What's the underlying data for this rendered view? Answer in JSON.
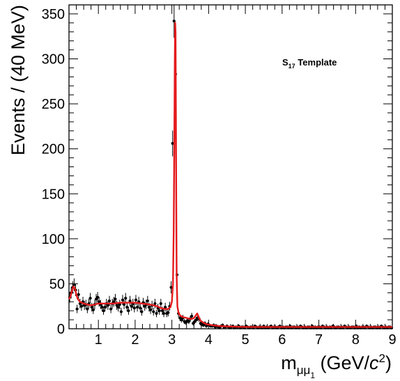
{
  "chart_data": {
    "type": "scatter",
    "annotation": {
      "main": "S",
      "sub": "17",
      "rest": " Template"
    },
    "xlabel": {
      "main": "m",
      "sub": "μμ",
      "subsub": "1",
      "unit_open": " (GeV/",
      "unit_c": "c",
      "unit_sup": "2",
      "unit_close": ")"
    },
    "ylabel": "Events / (40 MeV)",
    "xlim": [
      0.2,
      9.0
    ],
    "ylim": [
      0,
      360
    ],
    "x_ticks": [
      {
        "v": 1,
        "label": "1"
      },
      {
        "v": 2,
        "label": "2"
      },
      {
        "v": 3,
        "label": "3"
      },
      {
        "v": 4,
        "label": "4"
      },
      {
        "v": 5,
        "label": "5"
      },
      {
        "v": 6,
        "label": "6"
      },
      {
        "v": 7,
        "label": "7"
      },
      {
        "v": 8,
        "label": "8"
      },
      {
        "v": 9,
        "label": "9"
      }
    ],
    "y_ticks": [
      {
        "v": 0,
        "label": "0"
      },
      {
        "v": 50,
        "label": "50"
      },
      {
        "v": 100,
        "label": "100"
      },
      {
        "v": 150,
        "label": "150"
      },
      {
        "v": 200,
        "label": "200"
      },
      {
        "v": 250,
        "label": "250"
      },
      {
        "v": 300,
        "label": "300"
      },
      {
        "v": 350,
        "label": "350"
      }
    ],
    "grid": false,
    "colors": {
      "data": "#000000",
      "fit": "#e41a1c"
    },
    "series": [
      {
        "kind": "data-points-with-errors",
        "x": [
          0.22,
          0.26,
          0.3,
          0.34,
          0.38,
          0.42,
          0.46,
          0.5,
          0.54,
          0.58,
          0.62,
          0.66,
          0.7,
          0.74,
          0.78,
          0.82,
          0.86,
          0.9,
          0.94,
          0.98,
          1.02,
          1.06,
          1.1,
          1.14,
          1.18,
          1.22,
          1.26,
          1.3,
          1.34,
          1.38,
          1.42,
          1.46,
          1.5,
          1.54,
          1.58,
          1.62,
          1.66,
          1.7,
          1.74,
          1.78,
          1.82,
          1.86,
          1.9,
          1.94,
          1.98,
          2.02,
          2.06,
          2.1,
          2.14,
          2.18,
          2.22,
          2.26,
          2.3,
          2.34,
          2.38,
          2.42,
          2.46,
          2.5,
          2.54,
          2.58,
          2.62,
          2.66,
          2.7,
          2.74,
          2.78,
          2.82,
          2.86,
          2.9,
          2.94,
          2.98,
          3.02,
          3.06,
          3.1,
          3.14,
          3.18,
          3.22,
          3.26,
          3.3,
          3.34,
          3.38,
          3.42,
          3.46,
          3.5,
          3.54,
          3.58,
          3.62,
          3.66,
          3.7,
          3.74,
          3.78,
          3.82,
          3.86,
          3.9,
          3.94,
          3.98,
          4.02,
          4.06,
          4.1,
          4.14,
          4.18,
          4.22,
          4.26,
          4.3,
          4.34,
          4.38,
          4.42,
          4.46,
          4.5,
          4.54,
          4.58,
          4.62,
          4.66,
          4.7,
          4.74,
          4.78,
          4.82,
          4.86,
          4.9,
          4.94,
          4.98,
          5.02,
          5.06,
          5.1,
          5.14,
          5.18,
          5.22,
          5.26,
          5.3,
          5.34,
          5.38,
          5.42,
          5.46,
          5.5,
          5.54,
          5.58,
          5.62,
          5.66,
          5.7,
          5.74,
          5.78,
          5.82,
          5.86,
          5.9,
          5.94,
          5.98,
          6.02,
          6.06,
          6.1,
          6.14,
          6.18,
          6.22,
          6.26,
          6.3,
          6.34,
          6.38,
          6.42,
          6.46,
          6.5,
          6.54,
          6.58,
          6.62,
          6.66,
          6.7,
          6.74,
          6.78,
          6.82,
          6.86,
          6.9,
          6.94,
          6.98,
          7.02,
          7.06,
          7.1,
          7.14,
          7.18,
          7.22,
          7.26,
          7.3,
          7.34,
          7.38,
          7.42,
          7.46,
          7.5,
          7.54,
          7.58,
          7.62,
          7.66,
          7.7,
          7.74,
          7.78,
          7.82,
          7.86,
          7.9,
          7.94,
          7.98,
          8.02,
          8.06,
          8.1,
          8.14,
          8.18,
          8.22,
          8.26,
          8.3,
          8.34,
          8.38,
          8.42,
          8.46,
          8.5,
          8.54,
          8.58,
          8.62,
          8.66,
          8.7,
          8.74,
          8.78,
          8.82,
          8.86,
          8.9,
          8.94,
          8.98
        ],
        "y": [
          35,
          40,
          46,
          49,
          43,
          22,
          38,
          28,
          25,
          30,
          26,
          27,
          22,
          28,
          34,
          24,
          21,
          27,
          33,
          35,
          30,
          27,
          24,
          20,
          24,
          28,
          26,
          31,
          22,
          28,
          30,
          33,
          26,
          24,
          27,
          19,
          32,
          27,
          34,
          24,
          20,
          31,
          25,
          28,
          23,
          32,
          24,
          30,
          23,
          19,
          29,
          25,
          27,
          31,
          24,
          21,
          26,
          19,
          28,
          17,
          23,
          20,
          28,
          20,
          17,
          24,
          17,
          18,
          25,
          46,
          206,
          342,
          283,
          60,
          17,
          12,
          10,
          12,
          8,
          7,
          9,
          8,
          11,
          14,
          6,
          8,
          10,
          12,
          11,
          6,
          5,
          4,
          6,
          3,
          5,
          4,
          3,
          3,
          4,
          2,
          3,
          2,
          1,
          3,
          4,
          2,
          2,
          3,
          2,
          1,
          2,
          3,
          1,
          2,
          2,
          3,
          1,
          2,
          2,
          1,
          3,
          2,
          1,
          2,
          2,
          1,
          3,
          2,
          1,
          2,
          2,
          1,
          3,
          1,
          2,
          1,
          2,
          3,
          1,
          2,
          2,
          1,
          2,
          3,
          1,
          2,
          1,
          2,
          2,
          1,
          3,
          1,
          2,
          2,
          1,
          2,
          1,
          3,
          2,
          1,
          2,
          1,
          2,
          2,
          1,
          3,
          1,
          2,
          1,
          2,
          2,
          1,
          3,
          2,
          1,
          2,
          1,
          2,
          1,
          3,
          2,
          1,
          2,
          2,
          1,
          2,
          1,
          3,
          2,
          1,
          2,
          1,
          2,
          2,
          1,
          3,
          1,
          2,
          1,
          2,
          2,
          1,
          3,
          2,
          1,
          2,
          1,
          2,
          2,
          1,
          2,
          1,
          3,
          2,
          1,
          2,
          1,
          2,
          2,
          1
        ]
      },
      {
        "kind": "fit-curve",
        "x": [
          0.2,
          0.24,
          0.28,
          0.32,
          0.36,
          0.4,
          0.44,
          0.5,
          0.6,
          0.7,
          0.8,
          0.9,
          1.0,
          1.2,
          1.4,
          1.6,
          1.8,
          2.0,
          2.2,
          2.4,
          2.6,
          2.7,
          2.8,
          2.9,
          2.96,
          3.0,
          3.03,
          3.05,
          3.07,
          3.08,
          3.09,
          3.1,
          3.11,
          3.12,
          3.13,
          3.15,
          3.18,
          3.2,
          3.25,
          3.3,
          3.4,
          3.5,
          3.55,
          3.6,
          3.64,
          3.67,
          3.69,
          3.71,
          3.74,
          3.78,
          3.85,
          3.95,
          4.1,
          4.3,
          4.6,
          5.0,
          5.5,
          6.0,
          6.5,
          7.0,
          7.5,
          8.0,
          8.5,
          9.0
        ],
        "y": [
          33,
          36,
          42,
          47,
          45,
          38,
          33,
          30,
          28,
          27,
          26,
          27,
          28,
          28,
          28,
          29,
          29,
          29,
          28,
          27,
          25,
          23,
          22,
          22,
          24,
          30,
          50,
          110,
          230,
          300,
          340,
          330,
          240,
          140,
          60,
          25,
          18,
          16,
          14,
          13,
          12,
          11,
          11,
          12,
          14,
          16,
          17,
          15,
          12,
          9,
          7,
          5,
          4,
          3,
          2.5,
          2,
          2,
          2,
          2,
          2,
          2,
          2,
          2,
          2
        ]
      }
    ]
  }
}
